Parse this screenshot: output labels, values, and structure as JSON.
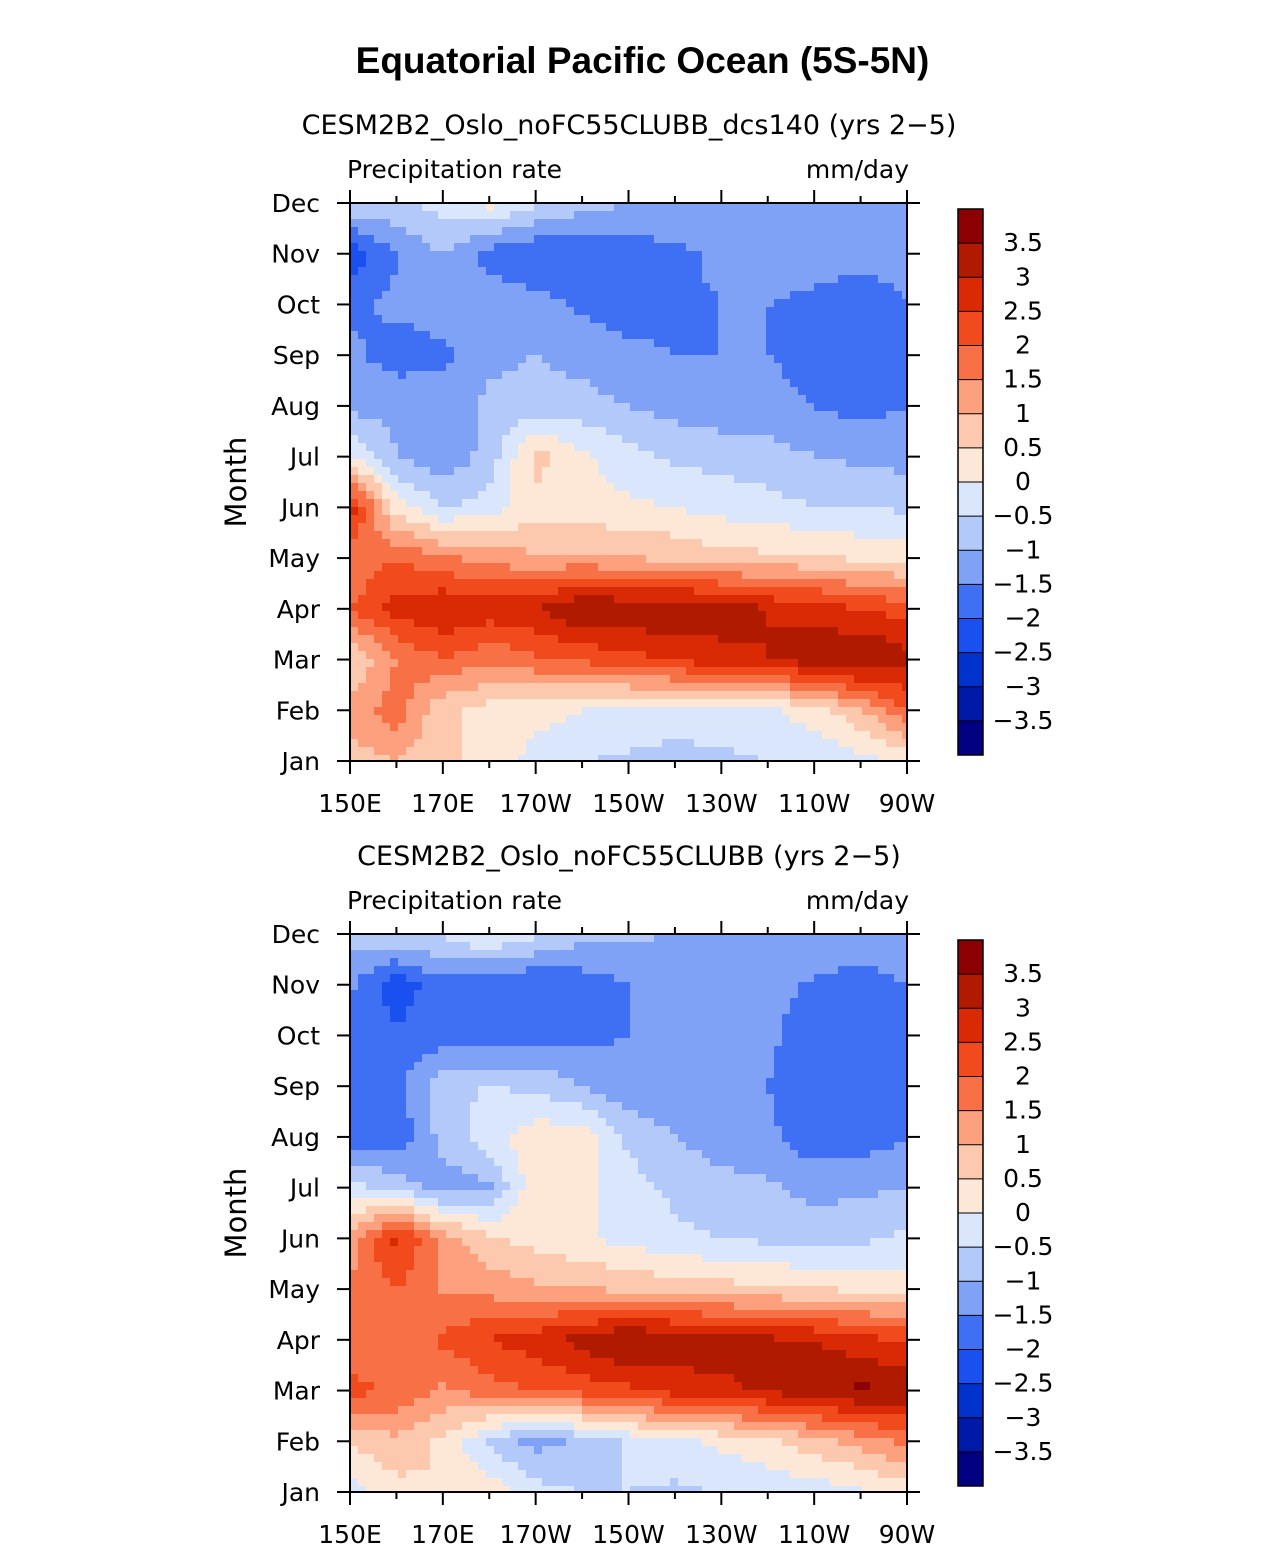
{
  "main_title": "Equatorial Pacific Ocean (5S-5N)",
  "chart_data": [
    {
      "type": "heatmap",
      "title": "CESM2B2_Oslo_noFC55CLUBB_dcs140 (yrs 2−5)",
      "left_string": "Precipitation rate",
      "right_string": "mm/day",
      "ylabel": "Month",
      "x_ticks": [
        "150E",
        "170E",
        "170W",
        "150W",
        "130W",
        "110W",
        "90W"
      ],
      "y_ticks": [
        "Jan",
        "Feb",
        "Mar",
        "Apr",
        "May",
        "Jun",
        "Jul",
        "Aug",
        "Sep",
        "Oct",
        "Nov",
        "Dec"
      ],
      "x_range": [
        150,
        270
      ],
      "levels": [
        -3.5,
        -3,
        -2.5,
        -2,
        -1.5,
        -1,
        -0.5,
        0,
        0.5,
        1,
        1.5,
        2,
        2.5,
        3,
        3.5
      ],
      "level_labels": [
        "3.5",
        "3",
        "2.5",
        "2",
        "1.5",
        "1",
        "0.5",
        "0",
        "−0.5",
        "−1",
        "−1.5",
        "−2",
        "−2.5",
        "−3",
        "−3.5"
      ],
      "grid_lon": [
        150,
        160,
        170,
        180,
        190,
        200,
        210,
        220,
        230,
        240,
        250,
        260,
        270
      ],
      "values": [
        [
          0.8,
          1.0,
          0.6,
          0.3,
          -0.2,
          -0.5,
          -0.6,
          -0.7,
          -0.6,
          -0.5,
          -0.4,
          -0.2,
          0.1
        ],
        [
          1.2,
          1.8,
          0.6,
          0.3,
          0.2,
          0.0,
          -0.1,
          -0.2,
          -0.2,
          -0.1,
          0.3,
          0.9,
          2.0
        ],
        [
          0.5,
          1.5,
          2.0,
          1.6,
          1.9,
          2.1,
          2.3,
          2.6,
          2.8,
          3.0,
          3.3,
          3.6,
          3.2
        ],
        [
          2.0,
          2.7,
          3.0,
          2.8,
          3.0,
          3.6,
          3.4,
          3.5,
          3.3,
          3.0,
          2.8,
          2.5,
          2.3
        ],
        [
          1.5,
          2.0,
          1.6,
          1.3,
          1.1,
          1.1,
          1.0,
          0.9,
          0.7,
          0.6,
          0.6,
          0.4,
          0.3
        ],
        [
          2.8,
          0.2,
          -0.5,
          -0.3,
          0.3,
          0.2,
          0.1,
          0.0,
          -0.2,
          -0.3,
          -0.5,
          -0.5,
          -0.6
        ],
        [
          0.1,
          -1.0,
          -1.4,
          -0.8,
          0.7,
          0.1,
          -0.3,
          -0.6,
          -0.7,
          -0.8,
          -1.0,
          -1.1,
          -1.2
        ],
        [
          -1.2,
          -1.2,
          -1.3,
          -0.9,
          -0.8,
          -0.8,
          -1.0,
          -1.2,
          -1.3,
          -1.3,
          -1.5,
          -1.7,
          -1.5
        ],
        [
          -1.4,
          -1.7,
          -1.6,
          -1.1,
          -1.0,
          -1.2,
          -1.4,
          -1.5,
          -1.5,
          -1.5,
          -1.7,
          -2.0,
          -1.8
        ],
        [
          -1.6,
          -1.4,
          -1.3,
          -1.2,
          -1.3,
          -1.6,
          -1.7,
          -1.6,
          -1.5,
          -1.5,
          -1.6,
          -1.8,
          -1.5
        ],
        [
          -2.4,
          -1.5,
          -1.0,
          -1.7,
          -2.0,
          -1.9,
          -1.8,
          -1.6,
          -1.4,
          -1.3,
          -1.3,
          -1.3,
          -1.3
        ],
        [
          -0.5,
          -0.6,
          -0.3,
          0.2,
          -0.4,
          -0.8,
          -1.0,
          -1.1,
          -1.1,
          -1.1,
          -1.1,
          -1.1,
          -1.1
        ]
      ]
    },
    {
      "type": "heatmap",
      "title": "CESM2B2_Oslo_noFC55CLUBB (yrs 2−5)",
      "left_string": "Precipitation rate",
      "right_string": "mm/day",
      "ylabel": "Month",
      "x_ticks": [
        "150E",
        "170E",
        "170W",
        "150W",
        "130W",
        "110W",
        "90W"
      ],
      "y_ticks": [
        "Jan",
        "Feb",
        "Mar",
        "Apr",
        "May",
        "Jun",
        "Jul",
        "Aug",
        "Sep",
        "Oct",
        "Nov",
        "Dec"
      ],
      "x_range": [
        150,
        270
      ],
      "levels": [
        -3.5,
        -3,
        -2.5,
        -2,
        -1.5,
        -1,
        -0.5,
        0,
        0.5,
        1,
        1.5,
        2,
        2.5,
        3,
        3.5
      ],
      "level_labels": [
        "3.5",
        "3",
        "2.5",
        "2",
        "1.5",
        "1",
        "0.5",
        "0",
        "−0.5",
        "−1",
        "−1.5",
        "−2",
        "−2.5",
        "−3",
        "−3.5"
      ],
      "grid_lon": [
        150,
        160,
        170,
        180,
        190,
        200,
        210,
        220,
        230,
        240,
        250,
        260,
        270
      ],
      "values": [
        [
          -0.3,
          0.3,
          0.5,
          0.3,
          -0.3,
          -0.5,
          -0.5,
          -0.6,
          -0.5,
          -0.4,
          -0.3,
          -0.1,
          0.2
        ],
        [
          0.6,
          0.9,
          0.4,
          -0.6,
          -1.2,
          -0.9,
          -0.4,
          -0.1,
          0.1,
          0.4,
          0.8,
          1.2,
          1.6
        ],
        [
          2.2,
          1.9,
          1.4,
          1.8,
          2.0,
          2.2,
          2.4,
          2.7,
          2.9,
          3.1,
          3.3,
          3.6,
          3.5
        ],
        [
          1.5,
          1.6,
          2.1,
          2.5,
          2.8,
          3.2,
          3.6,
          3.4,
          3.2,
          3.1,
          3.0,
          2.7,
          2.4
        ],
        [
          1.6,
          2.0,
          1.4,
          1.3,
          1.1,
          1.0,
          0.9,
          0.8,
          0.7,
          0.6,
          0.5,
          0.4,
          0.3
        ],
        [
          1.2,
          2.7,
          1.3,
          0.6,
          0.3,
          0.1,
          -0.2,
          -0.4,
          -0.5,
          -0.6,
          -0.7,
          -0.6,
          -0.4
        ],
        [
          -0.3,
          -0.7,
          -1.3,
          -1.1,
          0.4,
          0.2,
          -0.3,
          -0.6,
          -0.8,
          -0.9,
          -1.2,
          -1.1,
          -1.0
        ],
        [
          -1.8,
          -1.9,
          -0.8,
          -0.2,
          0.3,
          0.3,
          -0.6,
          -1.0,
          -1.3,
          -1.4,
          -1.8,
          -1.8,
          -1.5
        ],
        [
          -1.8,
          -1.7,
          -0.6,
          -0.5,
          -0.6,
          -1.0,
          -1.4,
          -1.5,
          -1.5,
          -1.5,
          -1.8,
          -1.9,
          -1.6
        ],
        [
          -1.8,
          -1.9,
          -1.8,
          -1.9,
          -1.7,
          -1.6,
          -1.5,
          -1.5,
          -1.4,
          -1.4,
          -1.8,
          -2.0,
          -1.7
        ],
        [
          -1.4,
          -2.3,
          -1.7,
          -2.0,
          -2.0,
          -1.8,
          -1.5,
          -1.4,
          -1.3,
          -1.3,
          -1.6,
          -1.8,
          -1.5
        ],
        [
          -0.8,
          -0.6,
          -0.4,
          0.1,
          -0.4,
          -0.8,
          -0.9,
          -1.0,
          -1.0,
          -1.0,
          -1.0,
          -1.0,
          -1.0
        ]
      ]
    }
  ],
  "colors": {
    "palette": [
      "#000080",
      "#0019a6",
      "#0033cc",
      "#1a4ff0",
      "#3f6ff2",
      "#7fa2f7",
      "#b3c9fa",
      "#d9e6fc",
      "#fde8d8",
      "#fdc9ae",
      "#fca07d",
      "#f87146",
      "#f04a1d",
      "#d92a05",
      "#b01b00",
      "#8b0000"
    ]
  }
}
